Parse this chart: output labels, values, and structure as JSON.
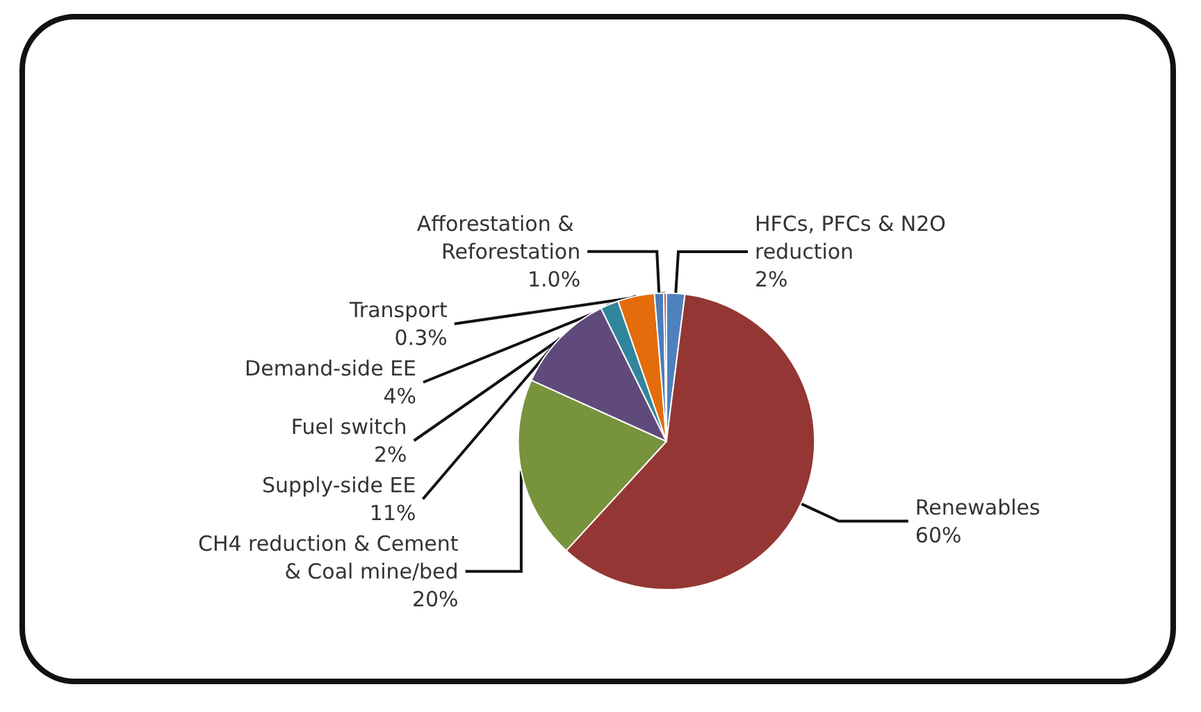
{
  "chart_data": {
    "type": "pie",
    "categories": [
      "HFCs, PFCs & N2O reduction",
      "Renewables",
      "CH4 reduction & Cement & Coal mine/bed",
      "Supply-side EE",
      "Fuel switch",
      "Demand-side EE",
      "Afforestation & Reforestation",
      "Transport"
    ],
    "values": [
      2,
      60,
      20,
      11,
      2,
      4,
      1.0,
      0.3
    ],
    "value_labels": [
      "2%",
      "60%",
      "20%",
      "11%",
      "2%",
      "4%",
      "1.0%",
      "0.3%"
    ],
    "colors": [
      "#4f81bd",
      "#943634",
      "#77933c",
      "#604a7b",
      "#31859c",
      "#e46c0a",
      "#4a7ebb",
      "#c0504d"
    ],
    "legend": false
  }
}
